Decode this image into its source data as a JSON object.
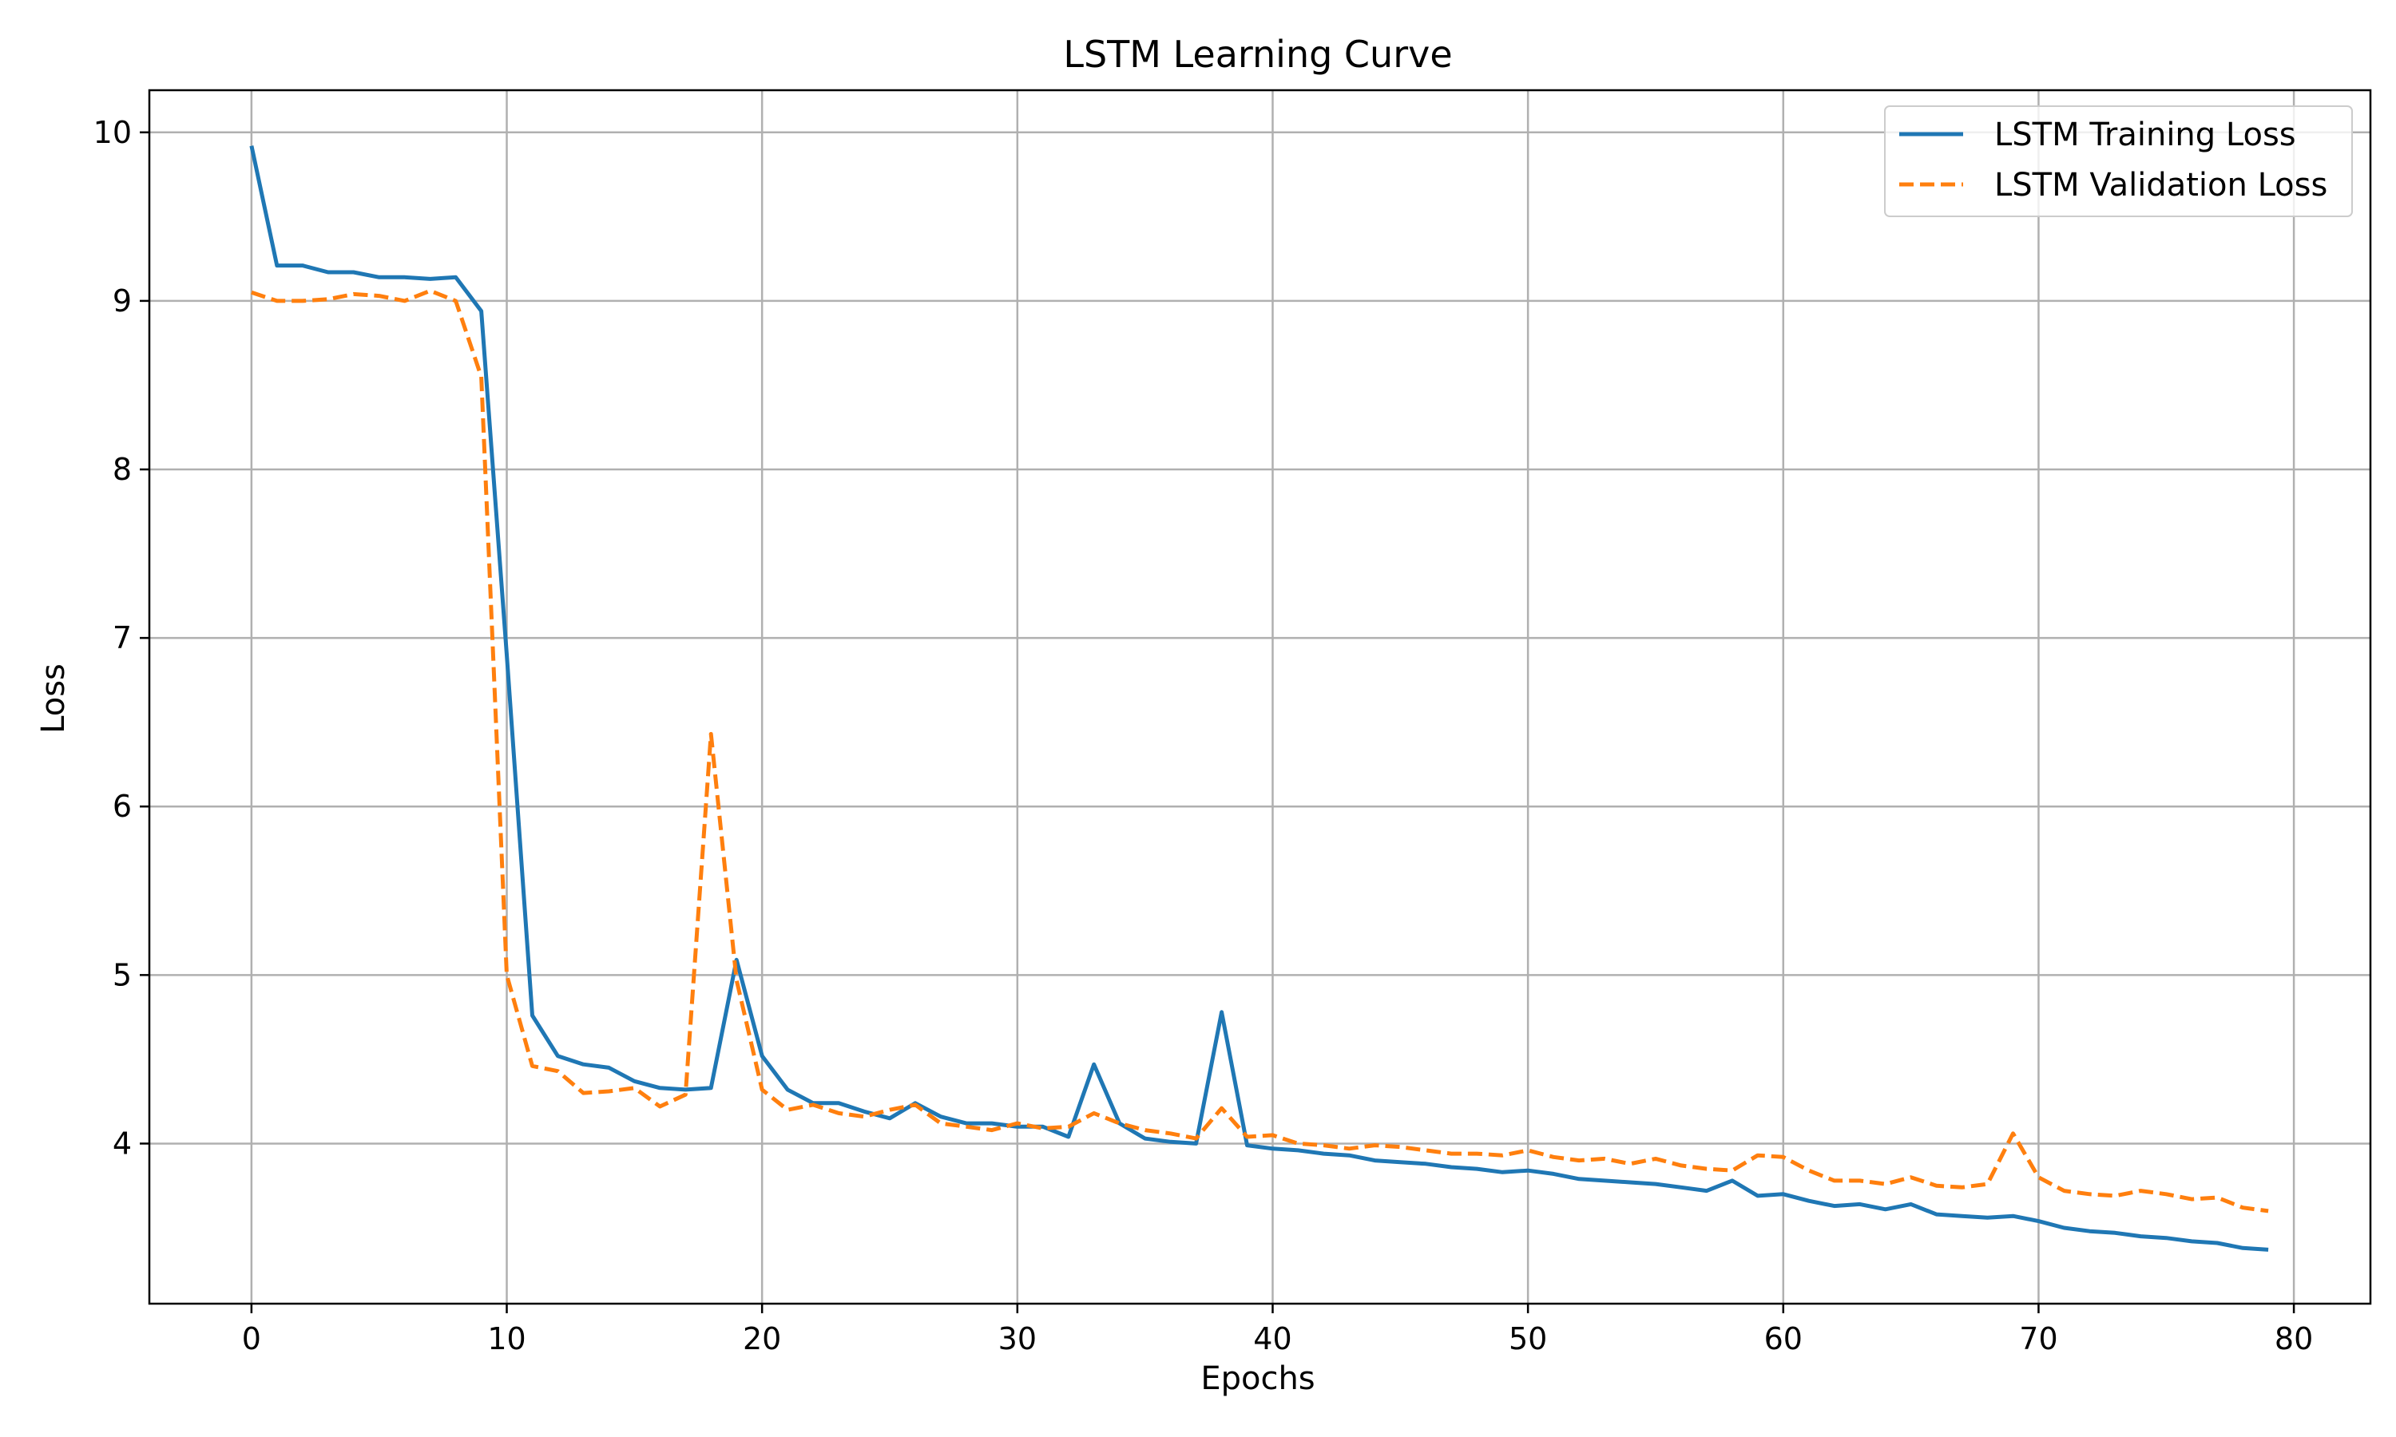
{
  "chart_data": {
    "type": "line",
    "title": "LSTM Learning Curve",
    "xlabel": "Epochs",
    "ylabel": "Loss",
    "xlim": [
      -4,
      83
    ],
    "ylim": [
      3.05,
      10.25
    ],
    "xticks": [
      0,
      10,
      20,
      30,
      40,
      50,
      60,
      70,
      80
    ],
    "yticks": [
      4,
      5,
      6,
      7,
      8,
      9,
      10
    ],
    "grid": true,
    "legend_position": "upper right",
    "x": [
      0,
      1,
      2,
      3,
      4,
      5,
      6,
      7,
      8,
      9,
      10,
      11,
      12,
      13,
      14,
      15,
      16,
      17,
      18,
      19,
      20,
      21,
      22,
      23,
      24,
      25,
      26,
      27,
      28,
      29,
      30,
      31,
      32,
      33,
      34,
      35,
      36,
      37,
      38,
      39,
      40,
      41,
      42,
      43,
      44,
      45,
      46,
      47,
      48,
      49,
      50,
      51,
      52,
      53,
      54,
      55,
      56,
      57,
      58,
      59,
      60,
      61,
      62,
      63,
      64,
      65,
      66,
      67,
      68,
      69,
      70,
      71,
      72,
      73,
      74,
      75,
      76,
      77,
      78,
      79
    ],
    "series": [
      {
        "name": "LSTM Training Loss",
        "color": "#1f77b4",
        "style": "solid",
        "values": [
          9.92,
          9.21,
          9.21,
          9.17,
          9.17,
          9.14,
          9.14,
          9.13,
          9.14,
          8.94,
          6.9,
          4.76,
          4.52,
          4.47,
          4.45,
          4.37,
          4.33,
          4.32,
          4.33,
          5.09,
          4.52,
          4.32,
          4.24,
          4.24,
          4.19,
          4.15,
          4.24,
          4.16,
          4.12,
          4.12,
          4.1,
          4.1,
          4.04,
          4.47,
          4.12,
          4.03,
          4.01,
          4.0,
          4.78,
          3.99,
          3.97,
          3.96,
          3.94,
          3.93,
          3.9,
          3.89,
          3.88,
          3.86,
          3.85,
          3.83,
          3.84,
          3.82,
          3.79,
          3.78,
          3.77,
          3.76,
          3.74,
          3.72,
          3.78,
          3.69,
          3.7,
          3.66,
          3.63,
          3.64,
          3.61,
          3.64,
          3.58,
          3.57,
          3.56,
          3.57,
          3.54,
          3.5,
          3.48,
          3.47,
          3.45,
          3.44,
          3.42,
          3.41,
          3.38,
          3.37
        ]
      },
      {
        "name": "LSTM Validation Loss",
        "color": "#ff7f0e",
        "style": "dashed",
        "values": [
          9.05,
          9.0,
          9.0,
          9.01,
          9.04,
          9.03,
          9.0,
          9.06,
          9.0,
          8.55,
          5.0,
          4.46,
          4.43,
          4.3,
          4.31,
          4.33,
          4.22,
          4.29,
          6.43,
          4.97,
          4.32,
          4.2,
          4.23,
          4.18,
          4.16,
          4.2,
          4.23,
          4.12,
          4.1,
          4.08,
          4.12,
          4.09,
          4.1,
          4.18,
          4.12,
          4.08,
          4.06,
          4.03,
          4.21,
          4.04,
          4.05,
          4.0,
          3.99,
          3.97,
          3.99,
          3.98,
          3.96,
          3.94,
          3.94,
          3.93,
          3.96,
          3.92,
          3.9,
          3.91,
          3.88,
          3.91,
          3.87,
          3.85,
          3.84,
          3.93,
          3.92,
          3.84,
          3.78,
          3.78,
          3.76,
          3.8,
          3.75,
          3.74,
          3.76,
          4.06,
          3.8,
          3.72,
          3.7,
          3.69,
          3.72,
          3.7,
          3.67,
          3.68,
          3.62,
          3.6
        ]
      }
    ]
  }
}
